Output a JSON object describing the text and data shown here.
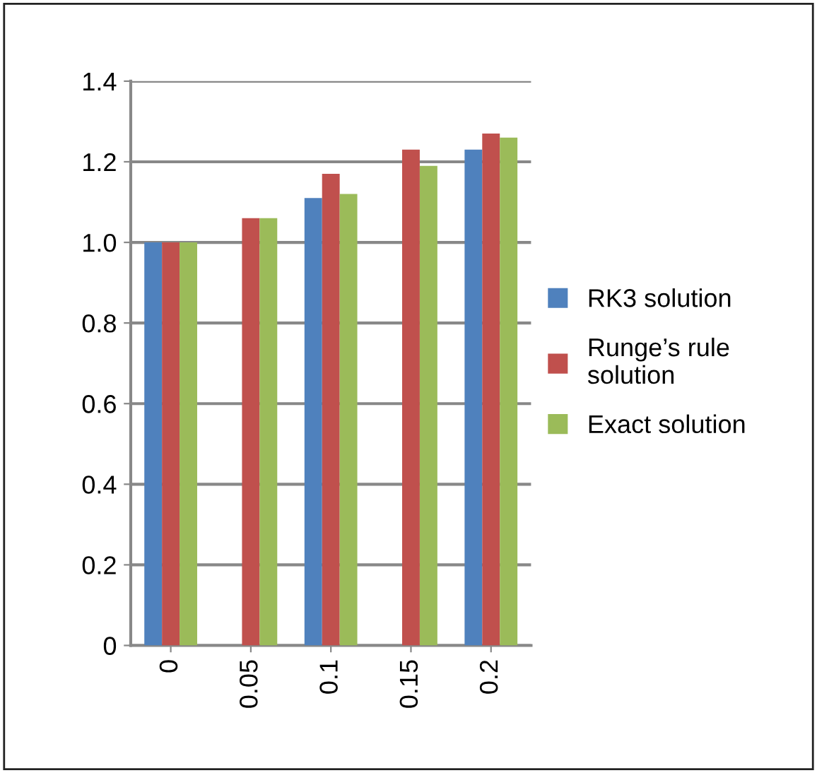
{
  "chart_data": {
    "type": "bar",
    "categories": [
      "0",
      "0.05",
      "0.1",
      "0.15",
      "0.2"
    ],
    "series": [
      {
        "name": "RK3 solution",
        "color": "#4f81bd",
        "values": [
          1.0,
          null,
          1.11,
          null,
          1.23
        ]
      },
      {
        "name": "Runge’s rule solution",
        "color": "#c0504d",
        "values": [
          1.0,
          1.06,
          1.17,
          1.23,
          1.27
        ]
      },
      {
        "name": "Exact solution",
        "color": "#9bbb59",
        "values": [
          1.0,
          1.06,
          1.12,
          1.19,
          1.26
        ]
      }
    ],
    "ylim": [
      0,
      1.4
    ],
    "yticks": [
      {
        "value": 0,
        "label": "0"
      },
      {
        "value": 0.2,
        "label": "0.2"
      },
      {
        "value": 0.4,
        "label": "0.4"
      },
      {
        "value": 0.6,
        "label": "0.6"
      },
      {
        "value": 0.8,
        "label": "0.8"
      },
      {
        "value": 1.0,
        "label": "1.0"
      },
      {
        "value": 1.2,
        "label": "1.2"
      },
      {
        "value": 1.4,
        "label": "1.4"
      }
    ],
    "grid": "y",
    "legend": "right"
  }
}
